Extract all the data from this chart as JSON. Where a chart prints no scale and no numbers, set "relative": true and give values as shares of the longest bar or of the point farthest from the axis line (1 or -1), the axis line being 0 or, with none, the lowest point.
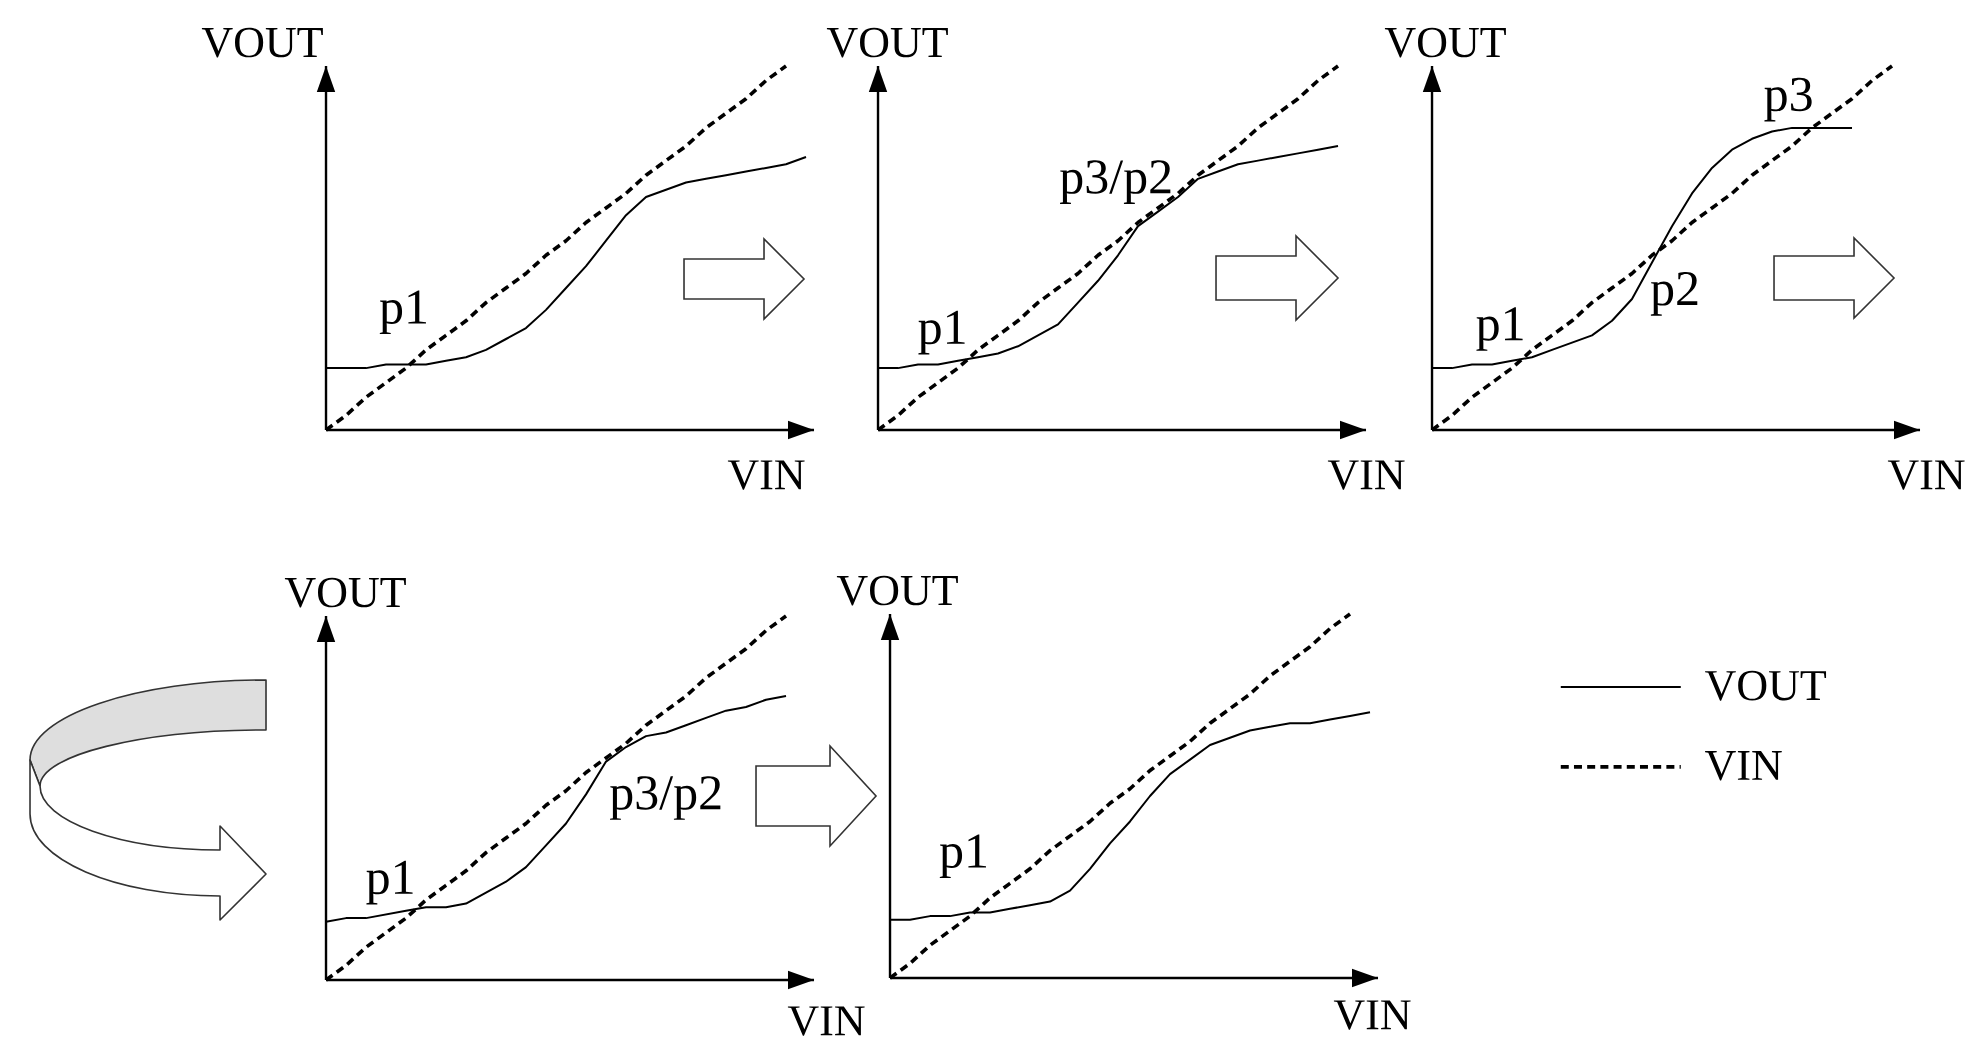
{
  "chart_data": [
    {
      "type": "line",
      "relative": true,
      "xlabel": "VIN",
      "ylabel": "VOUT",
      "categories": [
        null,
        null,
        null,
        null,
        null,
        null,
        null,
        null,
        null,
        null,
        null,
        null,
        null,
        null,
        null,
        null,
        null,
        null,
        null,
        null,
        null,
        null,
        null,
        null,
        null
      ],
      "series": [
        {
          "color": "#000000",
          "line_style": "solid",
          "values": [
            0.17,
            0.17,
            0.17,
            0.18,
            0.18,
            0.18,
            0.19,
            0.2,
            0.22,
            0.25,
            0.28,
            0.33,
            0.39,
            0.45,
            0.52,
            0.59,
            0.64,
            0.66,
            0.68,
            0.69,
            0.7,
            0.71,
            0.72,
            0.73,
            0.75
          ]
        },
        {
          "color": "#000000",
          "line_style": "dashed",
          "values": [
            0,
            0.04,
            0.09,
            0.13,
            0.17,
            0.22,
            0.26,
            0.3,
            0.35,
            0.39,
            0.43,
            0.48,
            0.52,
            0.57,
            0.61,
            0.65,
            0.7,
            0.74,
            0.78,
            0.83,
            0.87,
            0.91,
            0.96,
            1,
            null
          ]
        }
      ],
      "annotations": [
        {
          "text": "p1",
          "y": 0.18
        }
      ]
    },
    {
      "type": "line",
      "relative": true,
      "xlabel": "VIN",
      "ylabel": "VOUT",
      "categories": [
        null,
        null,
        null,
        null,
        null,
        null,
        null,
        null,
        null,
        null,
        null,
        null,
        null,
        null,
        null,
        null,
        null,
        null,
        null,
        null,
        null,
        null,
        null,
        null,
        null
      ],
      "series": [
        {
          "color": "#000000",
          "line_style": "solid",
          "values": [
            0.17,
            0.17,
            0.18,
            0.18,
            0.19,
            0.2,
            0.21,
            0.23,
            0.26,
            0.29,
            0.35,
            0.41,
            0.48,
            0.56,
            0.6,
            0.64,
            0.69,
            0.71,
            0.73,
            0.74,
            0.75,
            0.76,
            0.77,
            0.78,
            null
          ]
        },
        {
          "color": "#000000",
          "line_style": "dashed",
          "values": [
            0,
            0.04,
            0.09,
            0.13,
            0.17,
            0.22,
            0.26,
            0.3,
            0.35,
            0.39,
            0.43,
            0.48,
            0.52,
            0.57,
            0.61,
            0.65,
            0.7,
            0.74,
            0.78,
            0.83,
            0.87,
            0.91,
            0.96,
            1,
            null
          ]
        }
      ],
      "annotations": [
        {
          "text": "p1",
          "y": 0.19
        },
        "p3/p2"
      ]
    },
    {
      "type": "line",
      "relative": true,
      "xlabel": "VIN",
      "ylabel": "VOUT",
      "categories": [
        null,
        null,
        null,
        null,
        null,
        null,
        null,
        null,
        null,
        null,
        null,
        null,
        null,
        null,
        null,
        null,
        null,
        null,
        null,
        null,
        null,
        null,
        null,
        null,
        null
      ],
      "series": [
        {
          "color": "#000000",
          "line_style": "solid",
          "values": [
            0.17,
            0.17,
            0.18,
            0.18,
            0.19,
            0.2,
            0.22,
            0.24,
            0.26,
            0.3,
            0.36,
            0.46,
            0.56,
            0.65,
            0.72,
            0.77,
            0.8,
            0.82,
            0.83,
            0.83,
            0.83,
            0.83,
            null,
            null,
            null
          ]
        },
        {
          "color": "#000000",
          "line_style": "dashed",
          "values": [
            0,
            0.04,
            0.09,
            0.13,
            0.17,
            0.22,
            0.26,
            0.3,
            0.35,
            0.39,
            0.43,
            0.48,
            0.52,
            0.57,
            0.61,
            0.65,
            0.7,
            0.74,
            0.78,
            0.83,
            0.87,
            0.91,
            0.96,
            1,
            null
          ]
        }
      ],
      "annotations": [
        {
          "text": "p1",
          "y": 0.2
        },
        "p2",
        {
          "text": "p3",
          "y": 0.83
        }
      ]
    },
    {
      "type": "line",
      "relative": true,
      "xlabel": "VIN",
      "ylabel": "VOUT",
      "categories": [
        null,
        null,
        null,
        null,
        null,
        null,
        null,
        null,
        null,
        null,
        null,
        null,
        null,
        null,
        null,
        null,
        null,
        null,
        null,
        null,
        null,
        null,
        null,
        null,
        null
      ],
      "series": [
        {
          "color": "#000000",
          "line_style": "solid",
          "values": [
            0.16,
            0.17,
            0.17,
            0.18,
            0.19,
            0.2,
            0.2,
            0.21,
            0.24,
            0.27,
            0.31,
            0.37,
            0.43,
            0.51,
            0.6,
            0.64,
            0.67,
            0.68,
            0.7,
            0.72,
            0.74,
            0.75,
            0.77,
            0.78,
            null
          ]
        },
        {
          "color": "#000000",
          "line_style": "dashed",
          "values": [
            0,
            0.04,
            0.09,
            0.13,
            0.17,
            0.22,
            0.26,
            0.3,
            0.35,
            0.39,
            0.43,
            0.48,
            0.52,
            0.57,
            0.61,
            0.65,
            0.7,
            0.74,
            0.78,
            0.83,
            0.87,
            0.91,
            0.96,
            1,
            null
          ]
        }
      ],
      "annotations": [
        {
          "text": "p1",
          "y": 0.19
        },
        "p3/p2"
      ]
    },
    {
      "type": "line",
      "relative": true,
      "xlabel": "VIN",
      "ylabel": "VOUT",
      "legend": "right",
      "categories": [
        null,
        null,
        null,
        null,
        null,
        null,
        null,
        null,
        null,
        null,
        null,
        null,
        null,
        null,
        null,
        null,
        null,
        null,
        null,
        null,
        null,
        null,
        null,
        null,
        null
      ],
      "series": [
        {
          "name": "VOUT",
          "color": "#000000",
          "line_style": "solid",
          "values": [
            0.16,
            0.16,
            0.17,
            0.17,
            0.18,
            0.18,
            0.19,
            0.2,
            0.21,
            0.24,
            0.3,
            0.37,
            0.43,
            0.5,
            0.56,
            0.6,
            0.64,
            0.66,
            0.68,
            0.69,
            0.7,
            0.7,
            0.71,
            0.72,
            0.73
          ]
        },
        {
          "name": "VIN",
          "color": "#000000",
          "line_style": "dashed",
          "values": [
            0,
            0.04,
            0.09,
            0.13,
            0.17,
            0.22,
            0.26,
            0.3,
            0.35,
            0.39,
            0.43,
            0.48,
            0.52,
            0.57,
            0.61,
            0.65,
            0.7,
            0.74,
            0.78,
            0.83,
            0.87,
            0.91,
            0.96,
            1,
            null
          ]
        }
      ],
      "annotations": [
        {
          "text": "p1",
          "y": 0.18
        }
      ]
    }
  ]
}
